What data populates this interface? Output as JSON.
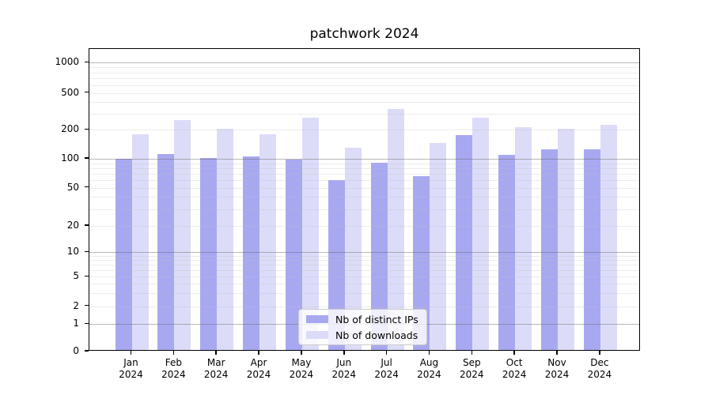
{
  "chart_data": {
    "type": "bar",
    "title": "patchwork 2024",
    "scale": "symlog",
    "grid": true,
    "legend_position": "lower center",
    "categories": [
      "Jan",
      "Feb",
      "Mar",
      "Apr",
      "May",
      "Jun",
      "Jul",
      "Aug",
      "Sep",
      "Oct",
      "Nov",
      "Dec"
    ],
    "year_label": "2024",
    "series": [
      {
        "name": "Nb of distinct IPs",
        "color": "#a8a8f1",
        "values": [
          97,
          108,
          99,
          102,
          95,
          58,
          87,
          63,
          170,
          106,
          121,
          120
        ]
      },
      {
        "name": "Nb of downloads",
        "color": "#dcdcf8",
        "values": [
          172,
          243,
          197,
          172,
          258,
          125,
          325,
          140,
          258,
          206,
          199,
          218
        ]
      }
    ],
    "y_ticks": [
      0,
      1,
      2,
      5,
      10,
      20,
      50,
      100,
      200,
      500,
      1000
    ],
    "ylim": [
      0,
      1400
    ]
  }
}
